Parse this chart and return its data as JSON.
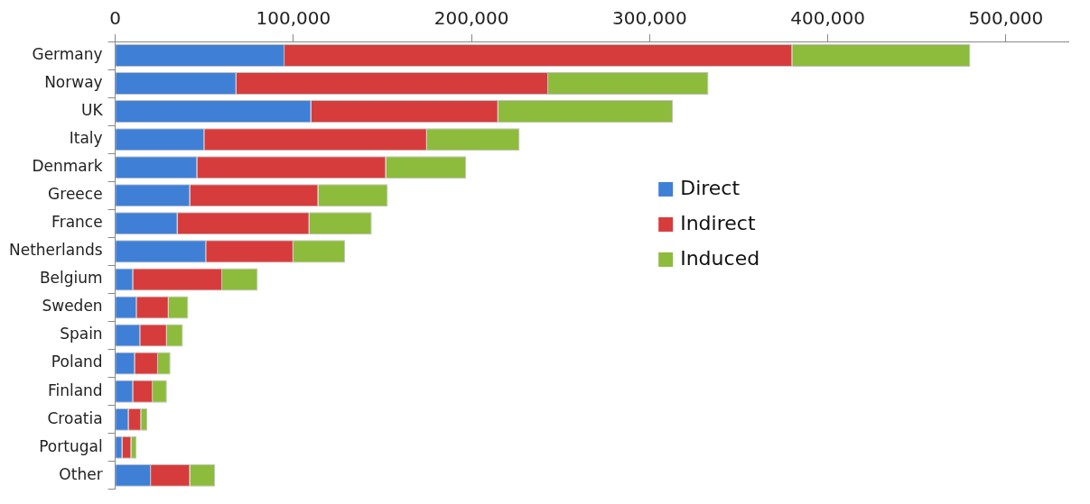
{
  "chart_data": {
    "type": "bar",
    "orientation": "horizontal",
    "stacked": true,
    "categories": [
      "Germany",
      "Norway",
      "UK",
      "Italy",
      "Denmark",
      "Greece",
      "France",
      "Netherlands",
      "Belgium",
      "Sweden",
      "Spain",
      "Poland",
      "Finland",
      "Croatia",
      "Portugal",
      "Other"
    ],
    "series": [
      {
        "name": "Direct",
        "color": "#3f7fd6",
        "values": [
          95000,
          68000,
          110000,
          50000,
          46000,
          42000,
          35000,
          51000,
          10000,
          12000,
          14000,
          11000,
          10000,
          7500,
          4000,
          20000
        ]
      },
      {
        "name": "Indirect",
        "color": "#d63c3c",
        "values": [
          285000,
          175000,
          105000,
          125000,
          106000,
          72000,
          74000,
          49000,
          50000,
          18000,
          15000,
          13000,
          11000,
          7000,
          5000,
          22000
        ]
      },
      {
        "name": "Induced",
        "color": "#8dbb3c",
        "values": [
          100000,
          90000,
          98000,
          52000,
          45000,
          39000,
          35000,
          29000,
          20000,
          11000,
          9000,
          7000,
          8000,
          3500,
          3000,
          14000
        ]
      }
    ],
    "xlim": [
      0,
      535000
    ],
    "xticks": [
      {
        "value": 0,
        "label": "0"
      },
      {
        "value": 100000,
        "label": "100,000"
      },
      {
        "value": 200000,
        "label": "200,000"
      },
      {
        "value": 300000,
        "label": "300,000"
      },
      {
        "value": 400000,
        "label": "400,000"
      },
      {
        "value": 500000,
        "label": "500,000"
      }
    ],
    "grid": false,
    "legend": "right"
  }
}
